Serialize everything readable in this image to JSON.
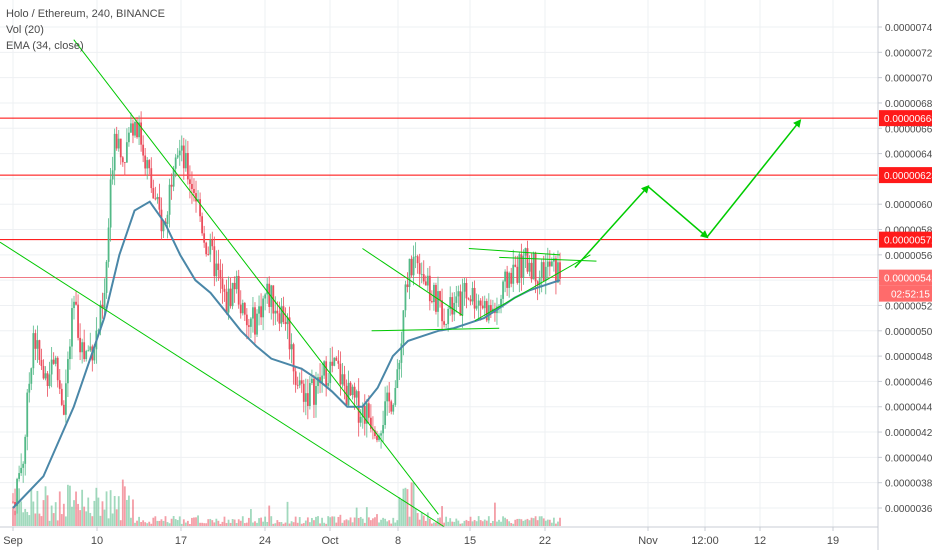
{
  "chart_data": {
    "type": "candlestick",
    "legend": {
      "title": "Holo / Ethereum, 240, BINANCE",
      "volume": "Vol (20)",
      "ema": "EMA (34, close)"
    },
    "y_axis": {
      "min": 3.5e-06,
      "max": 7.5e-06,
      "ticks": [
        "0.00000360",
        "0.00000380",
        "0.00000400",
        "0.00000420",
        "0.00000440",
        "0.00000460",
        "0.00000480",
        "0.00000500",
        "0.00000520",
        "0.00000540",
        "0.00000560",
        "0.00000580",
        "0.00000600",
        "0.00000620",
        "0.00000640",
        "0.00000660",
        "0.00000680",
        "0.00000700",
        "0.00000720",
        "0.00000740"
      ]
    },
    "x_axis": {
      "labels": [
        "Sep",
        "10",
        "17",
        "24",
        "Oct",
        "8",
        "15",
        "22",
        "Nov",
        "12:00",
        "12",
        "19"
      ]
    },
    "levels": [
      {
        "value": 6.68e-06,
        "label": "0.00000668"
      },
      {
        "value": 6.23e-06,
        "label": "0.00000623"
      },
      {
        "value": 5.72e-06,
        "label": "0.00000572"
      },
      {
        "value": 5.42e-06,
        "label": "0.00000542"
      }
    ],
    "current_price": "0.00000542",
    "countdown": "02:52:15",
    "colors": {
      "up": "#53b987",
      "down": "#eb4d5c",
      "level": "#ff0000",
      "trendline": "#00c800",
      "ema": "#4a87a8",
      "arrow": "#00cc00",
      "axis_text": "#4a4a4a",
      "price_tag": "#ff1a1a"
    },
    "ema_points": [
      [
        0,
        3.6e-06
      ],
      [
        10,
        3.85e-06
      ],
      [
        20,
        4.4e-06
      ],
      [
        30,
        5.1e-06
      ],
      [
        35,
        5.6e-06
      ],
      [
        40,
        5.95e-06
      ],
      [
        45,
        6.02e-06
      ],
      [
        50,
        5.85e-06
      ],
      [
        55,
        5.6e-06
      ],
      [
        60,
        5.4e-06
      ],
      [
        65,
        5.3e-06
      ],
      [
        70,
        5.15e-06
      ],
      [
        75,
        5e-06
      ],
      [
        80,
        4.88e-06
      ],
      [
        85,
        4.78e-06
      ],
      [
        90,
        4.74e-06
      ],
      [
        95,
        4.7e-06
      ],
      [
        100,
        4.62e-06
      ],
      [
        105,
        4.52e-06
      ],
      [
        110,
        4.4e-06
      ],
      [
        115,
        4.4e-06
      ],
      [
        120,
        4.55e-06
      ],
      [
        125,
        4.8e-06
      ],
      [
        130,
        4.92e-06
      ],
      [
        135,
        4.96e-06
      ],
      [
        140,
        5e-06
      ],
      [
        145,
        5.02e-06
      ],
      [
        150,
        5.06e-06
      ],
      [
        155,
        5.1e-06
      ],
      [
        160,
        5.18e-06
      ],
      [
        165,
        5.26e-06
      ],
      [
        170,
        5.32e-06
      ],
      [
        175,
        5.36e-06
      ],
      [
        180,
        5.4e-06
      ]
    ],
    "trendlines": [
      {
        "points": [
          [
            7.4e-06,
            28
          ],
          [
            4.35e-06,
            177
          ]
        ],
        "unit": "price-day"
      },
      {
        "points": [
          [
            5.7e-06,
            -2
          ],
          [
            3.45e-06,
            166
          ]
        ],
        "unit": "price-day"
      },
      {
        "points": [
          [
            5.65e-06,
            136
          ],
          [
            5.05e-06,
            166
          ]
        ],
        "unit": "price-day"
      },
      {
        "points": [
          [
            5.05e-06,
            133
          ],
          [
            5e-06,
            166
          ]
        ],
        "unit": "price-day"
      },
      {
        "points": [
          [
            5.62e-06,
            167
          ],
          [
            5.6e-06,
            180
          ]
        ],
        "unit": "price-day"
      },
      {
        "points": [
          [
            5.05e-06,
            166
          ],
          [
            5.6e-06,
            188
          ]
        ],
        "unit": "price-day"
      },
      {
        "points": [
          [
            5.58e-06,
            171
          ],
          [
            5.55e-06,
            198
          ]
        ],
        "unit": "price-day"
      }
    ],
    "projection": [
      [
        5.5e-06,
        190
      ],
      [
        6.15e-06,
        214
      ],
      [
        5.75e-06,
        233
      ],
      [
        6.65e-06,
        263
      ]
    ],
    "candles_seed": 7
  }
}
